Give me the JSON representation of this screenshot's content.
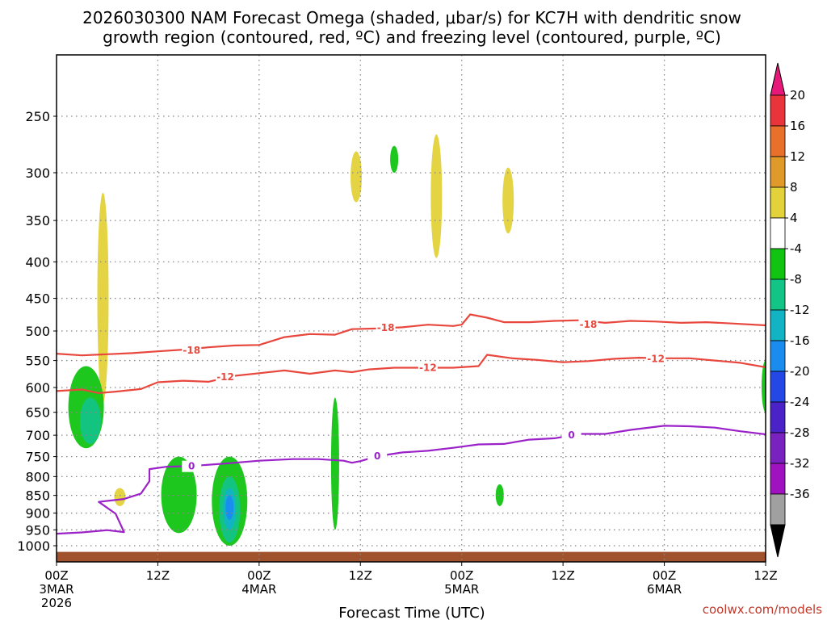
{
  "chart_data": {
    "type": "time-height",
    "title_lines": [
      "2026030300 NAM Forecast Omega (shaded, μbar/s) for KC7H with dendritic snow",
      "growth region (contoured, red, ºC) and freezing level (contoured, purple, ºC)"
    ],
    "xlabel": "Forecast Time (UTC)",
    "x_range_hours": [
      0,
      84
    ],
    "x_ticks": [
      {
        "hour": 0,
        "lines": [
          "00Z",
          "3MAR",
          "2026"
        ]
      },
      {
        "hour": 12,
        "lines": [
          "12Z"
        ]
      },
      {
        "hour": 24,
        "lines": [
          "00Z",
          "4MAR"
        ]
      },
      {
        "hour": 36,
        "lines": [
          "12Z"
        ]
      },
      {
        "hour": 48,
        "lines": [
          "00Z",
          "5MAR"
        ]
      },
      {
        "hour": 60,
        "lines": [
          "12Z"
        ]
      },
      {
        "hour": 72,
        "lines": [
          "00Z",
          "6MAR"
        ]
      },
      {
        "hour": 84,
        "lines": [
          "12Z"
        ]
      }
    ],
    "y_range_hpa": [
      1000,
      200
    ],
    "y_ticks": [
      "250",
      "300",
      "350",
      "400",
      "450",
      "500",
      "550",
      "600",
      "650",
      "700",
      "750",
      "800",
      "850",
      "900",
      "950",
      "1000"
    ],
    "surface_top_hpa": 1020,
    "colorbar": {
      "labels": [
        "20",
        "16",
        "12",
        "8",
        "4",
        "-4",
        "-8",
        "-12",
        "-16",
        "-20",
        "-24",
        "-28",
        "-32",
        "-36"
      ],
      "colors": [
        "#e6197a",
        "#e8343a",
        "#e8702a",
        "#e09a2a",
        "#e3d23a",
        "#ffffff",
        "#12c412",
        "#12c486",
        "#12b4c4",
        "#1a8cf0",
        "#2448e6",
        "#4a22c8",
        "#7a22c0",
        "#a012c0",
        "#a0a0a0",
        "#000000"
      ]
    },
    "contours": [
      {
        "name": "-18",
        "color": "#e8473d",
        "label": "-18",
        "points": [
          [
            0,
            538
          ],
          [
            3,
            541
          ],
          [
            6,
            539
          ],
          [
            9,
            537
          ],
          [
            12,
            534
          ],
          [
            15,
            531
          ],
          [
            18,
            527
          ],
          [
            21,
            524
          ],
          [
            24,
            523
          ],
          [
            27,
            510
          ],
          [
            30,
            505
          ],
          [
            33,
            506
          ],
          [
            35,
            497
          ],
          [
            38,
            496
          ],
          [
            41,
            494
          ],
          [
            44,
            490
          ],
          [
            47,
            492
          ],
          [
            48,
            490
          ],
          [
            49,
            474
          ],
          [
            51,
            479
          ],
          [
            53,
            486
          ],
          [
            56,
            486
          ],
          [
            59,
            484
          ],
          [
            62,
            483
          ],
          [
            65,
            487
          ],
          [
            68,
            484
          ],
          [
            71,
            485
          ],
          [
            74,
            487
          ],
          [
            77,
            486
          ],
          [
            80,
            488
          ],
          [
            84,
            491
          ]
        ],
        "label_at": [
          [
            16,
            532
          ],
          [
            39,
            495
          ],
          [
            63,
            490
          ]
        ]
      },
      {
        "name": "-12",
        "color": "#e8473d",
        "label": "-12",
        "points": [
          [
            0,
            607
          ],
          [
            3,
            604
          ],
          [
            5,
            611
          ],
          [
            7,
            608
          ],
          [
            10,
            603
          ],
          [
            12,
            590
          ],
          [
            15,
            587
          ],
          [
            18,
            589
          ],
          [
            21,
            578
          ],
          [
            24,
            573
          ],
          [
            27,
            568
          ],
          [
            30,
            574
          ],
          [
            33,
            568
          ],
          [
            35,
            571
          ],
          [
            37,
            566
          ],
          [
            40,
            563
          ],
          [
            44,
            563
          ],
          [
            47,
            563
          ],
          [
            50,
            560
          ],
          [
            51,
            540
          ],
          [
            54,
            546
          ],
          [
            57,
            549
          ],
          [
            60,
            553
          ],
          [
            63,
            551
          ],
          [
            66,
            547
          ],
          [
            69,
            545
          ],
          [
            72,
            546
          ],
          [
            75,
            546
          ],
          [
            78,
            550
          ],
          [
            81,
            554
          ],
          [
            84,
            562
          ]
        ],
        "label_at": [
          [
            20,
            580
          ],
          [
            44,
            563
          ],
          [
            71,
            547
          ]
        ]
      },
      {
        "name": "0",
        "color": "#9a22c8",
        "label": "0",
        "points": [
          [
            0,
            962
          ],
          [
            3,
            958
          ],
          [
            6,
            951
          ],
          [
            8,
            957
          ],
          [
            7,
            902
          ],
          [
            5,
            868
          ],
          [
            8,
            860
          ],
          [
            10,
            845
          ],
          [
            11,
            812
          ],
          [
            11,
            781
          ],
          [
            13,
            775
          ],
          [
            16,
            773
          ],
          [
            20,
            767
          ],
          [
            24,
            760
          ],
          [
            28,
            756
          ],
          [
            31,
            756
          ],
          [
            34,
            760
          ],
          [
            35,
            765
          ],
          [
            36,
            761
          ],
          [
            38,
            749
          ],
          [
            41,
            740
          ],
          [
            44,
            736
          ],
          [
            47,
            729
          ],
          [
            50,
            721
          ],
          [
            53,
            720
          ],
          [
            56,
            710
          ],
          [
            59,
            707
          ],
          [
            62,
            697
          ],
          [
            65,
            697
          ],
          [
            68,
            688
          ],
          [
            72,
            679
          ],
          [
            75,
            680
          ],
          [
            78,
            683
          ],
          [
            81,
            691
          ],
          [
            84,
            698
          ]
        ],
        "label_at": [
          [
            16,
            774
          ],
          [
            38,
            749
          ],
          [
            61,
            700
          ]
        ]
      }
    ],
    "omega_shaded_regions": [
      {
        "value_range": "4 to 8",
        "color": "#e3d23a",
        "center_hour": 5.5,
        "pressure_range": [
          320,
          630
        ]
      },
      {
        "value_range": "4 to 8",
        "color": "#e3d23a",
        "center_hour": 7.5,
        "pressure_range": [
          830,
          880
        ]
      },
      {
        "value_range": "4 to 8",
        "color": "#e3d23a",
        "center_hour": 35.5,
        "pressure_range": [
          280,
          330
        ]
      },
      {
        "value_range": "4 to 8",
        "color": "#e3d23a",
        "center_hour": 45,
        "pressure_range": [
          265,
          395
        ]
      },
      {
        "value_range": "4 to 8",
        "color": "#e3d23a",
        "center_hour": 53.5,
        "pressure_range": [
          295,
          365
        ]
      },
      {
        "value_range": "-4 to -8",
        "color": "#12c412",
        "center_hour": 40,
        "pressure_range": [
          275,
          300
        ]
      },
      {
        "value_range": "-4 to -8",
        "color": "#12c412",
        "center_hour": 3.5,
        "pressure_range": [
          560,
          730
        ]
      },
      {
        "value_range": "-4 to -8",
        "color": "#12c412",
        "center_hour": 14.5,
        "pressure_range": [
          750,
          960
        ]
      },
      {
        "value_range": "-4 to -8",
        "color": "#12c412",
        "center_hour": 20.5,
        "pressure_range": [
          750,
          1000
        ]
      },
      {
        "value_range": "-4 to -8",
        "color": "#12c412",
        "center_hour": 33,
        "pressure_range": [
          620,
          950
        ]
      },
      {
        "value_range": "-4 to -8",
        "color": "#12c412",
        "center_hour": 52.5,
        "pressure_range": [
          820,
          880
        ]
      },
      {
        "value_range": "-4 to -8",
        "color": "#12c412",
        "center_hour": 84,
        "pressure_range": [
          550,
          650
        ]
      },
      {
        "value_range": "-8 to -12",
        "color": "#12c486",
        "center_hour": 4,
        "pressure_range": [
          620,
          720
        ]
      },
      {
        "value_range": "-8 to -12",
        "color": "#12c486",
        "center_hour": 20.5,
        "pressure_range": [
          800,
          990
        ]
      },
      {
        "value_range": "-12 to -16",
        "color": "#12b4c4",
        "center_hour": 20.5,
        "pressure_range": [
          830,
          950
        ]
      },
      {
        "value_range": "-16 to -20",
        "color": "#1a8cf0",
        "center_hour": 20.5,
        "pressure_range": [
          850,
          920
        ]
      }
    ]
  },
  "credit": "coolwx.com/models"
}
